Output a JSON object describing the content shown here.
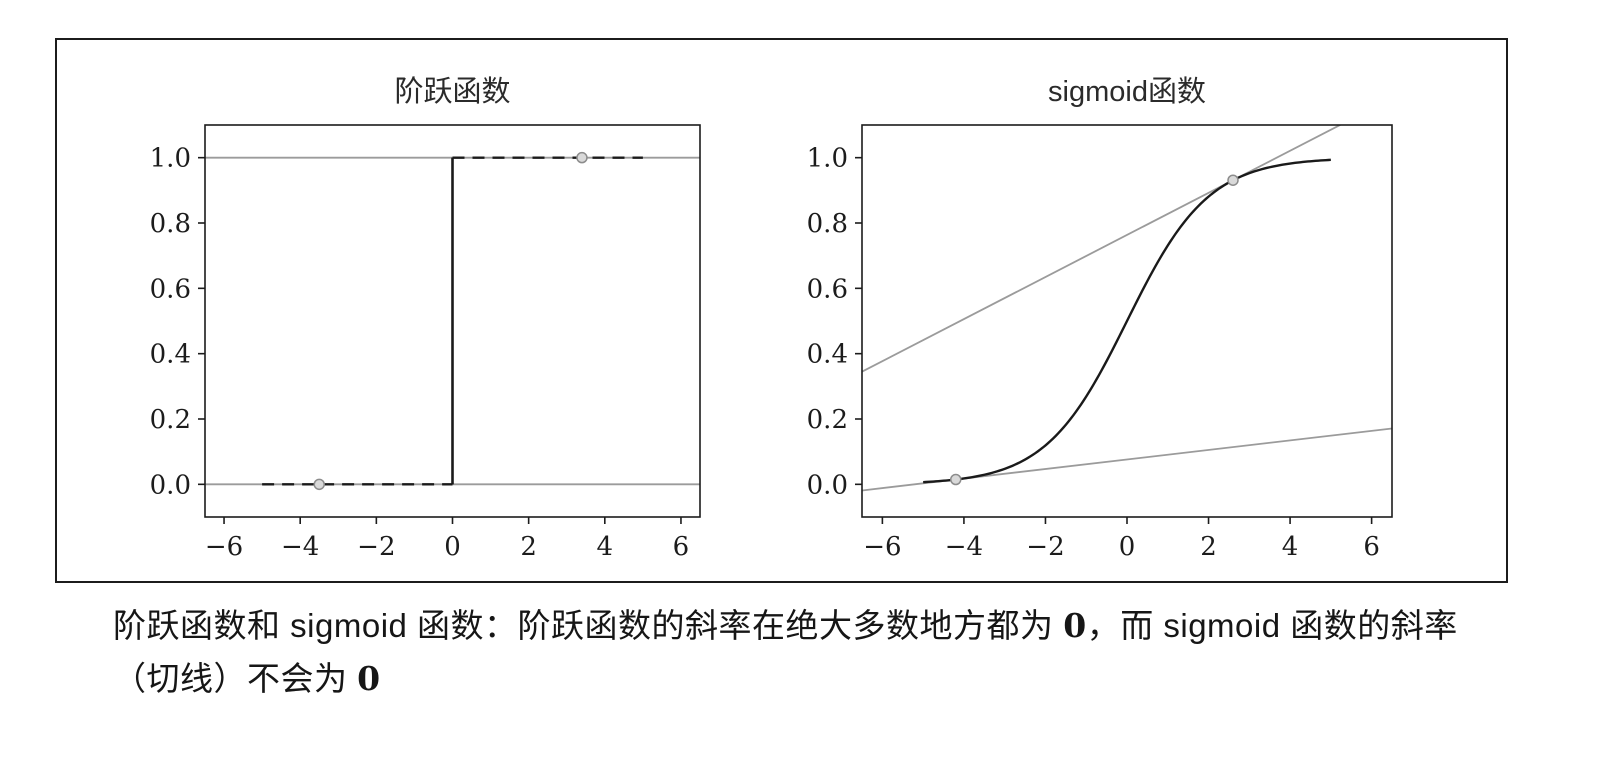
{
  "figure": {
    "caption_parts": [
      {
        "text": "阶跃函数和 sigmoid 函数：阶跃函数的斜率在绝大多数地方都为 ",
        "bold": false
      },
      {
        "text": "0",
        "bold": true
      },
      {
        "text": "，而 sigmoid 函数的斜率（切线）不会为 ",
        "bold": false
      },
      {
        "text": "0",
        "bold": true
      }
    ]
  },
  "chart_data": [
    {
      "type": "line",
      "title": "阶跃函数",
      "xlabel": "",
      "ylabel": "",
      "grid": false,
      "legend": null,
      "xlim": [
        -6.5,
        6.5
      ],
      "ylim": [
        -0.1,
        1.1
      ],
      "xticks": [
        -6,
        -4,
        -2,
        0,
        2,
        4,
        6
      ],
      "xtick_labels": [
        "−6",
        "−4",
        "−2",
        "0",
        "2",
        "4",
        "6"
      ],
      "yticks": [
        0.0,
        0.2,
        0.4,
        0.6,
        0.8,
        1.0
      ],
      "ytick_labels": [
        "0.0",
        "0.2",
        "0.4",
        "0.6",
        "0.8",
        "1.0"
      ],
      "series": [
        {
          "name": "tangent-at-y0",
          "kind": "segment",
          "points": [
            [
              -6.5,
              0
            ],
            [
              6.5,
              0
            ]
          ],
          "color": "#9b9b9b",
          "width": 1.8
        },
        {
          "name": "tangent-at-y1",
          "kind": "segment",
          "points": [
            [
              -6.5,
              1
            ],
            [
              6.5,
              1
            ]
          ],
          "color": "#9b9b9b",
          "width": 1.8
        },
        {
          "name": "step-low-dashed",
          "kind": "segment",
          "points": [
            [
              -5,
              0
            ],
            [
              0,
              0
            ]
          ],
          "color": "#1a1a1a",
          "width": 2.4,
          "dash": "12 8"
        },
        {
          "name": "step-jump",
          "kind": "segment",
          "points": [
            [
              0,
              0
            ],
            [
              0,
              1
            ]
          ],
          "color": "#1a1a1a",
          "width": 2.6
        },
        {
          "name": "step-high-dashed",
          "kind": "segment",
          "points": [
            [
              0,
              1
            ],
            [
              5,
              1
            ]
          ],
          "color": "#1a1a1a",
          "width": 2.4,
          "dash": "12 8"
        }
      ],
      "markers": [
        {
          "x": -3.5,
          "y": 0.0
        },
        {
          "x": 3.4,
          "y": 1.0
        }
      ],
      "marker_style": {
        "fill": "#d9d9d9",
        "stroke": "#8c8c8c",
        "radius": 5
      }
    },
    {
      "type": "line",
      "title": "sigmoid函数",
      "xlabel": "",
      "ylabel": "",
      "grid": false,
      "legend": null,
      "xlim": [
        -6.5,
        6.5
      ],
      "ylim": [
        -0.1,
        1.1
      ],
      "xticks": [
        -6,
        -4,
        -2,
        0,
        2,
        4,
        6
      ],
      "xtick_labels": [
        "−6",
        "−4",
        "−2",
        "0",
        "2",
        "4",
        "6"
      ],
      "yticks": [
        0.0,
        0.2,
        0.4,
        0.6,
        0.8,
        1.0
      ],
      "ytick_labels": [
        "0.0",
        "0.2",
        "0.4",
        "0.6",
        "0.8",
        "1.0"
      ],
      "series": [
        {
          "name": "tangent-upper",
          "kind": "tangent-line",
          "point": [
            2.6,
            0.9309
          ],
          "slope": 0.0644,
          "color": "#9b9b9b",
          "width": 1.8
        },
        {
          "name": "tangent-lower",
          "kind": "tangent-line",
          "point": [
            -4.2,
            0.0148
          ],
          "slope": 0.0146,
          "color": "#9b9b9b",
          "width": 1.8
        },
        {
          "name": "sigmoid-curve",
          "kind": "function",
          "fn": "sigmoid",
          "x_range": [
            -5,
            5
          ],
          "samples": 160,
          "color": "#1a1a1a",
          "width": 2.4
        }
      ],
      "markers": [
        {
          "x": -4.2,
          "y": 0.0148
        },
        {
          "x": 2.6,
          "y": 0.9309
        }
      ],
      "marker_style": {
        "fill": "#d9d9d9",
        "stroke": "#8c8c8c",
        "radius": 5
      }
    }
  ]
}
